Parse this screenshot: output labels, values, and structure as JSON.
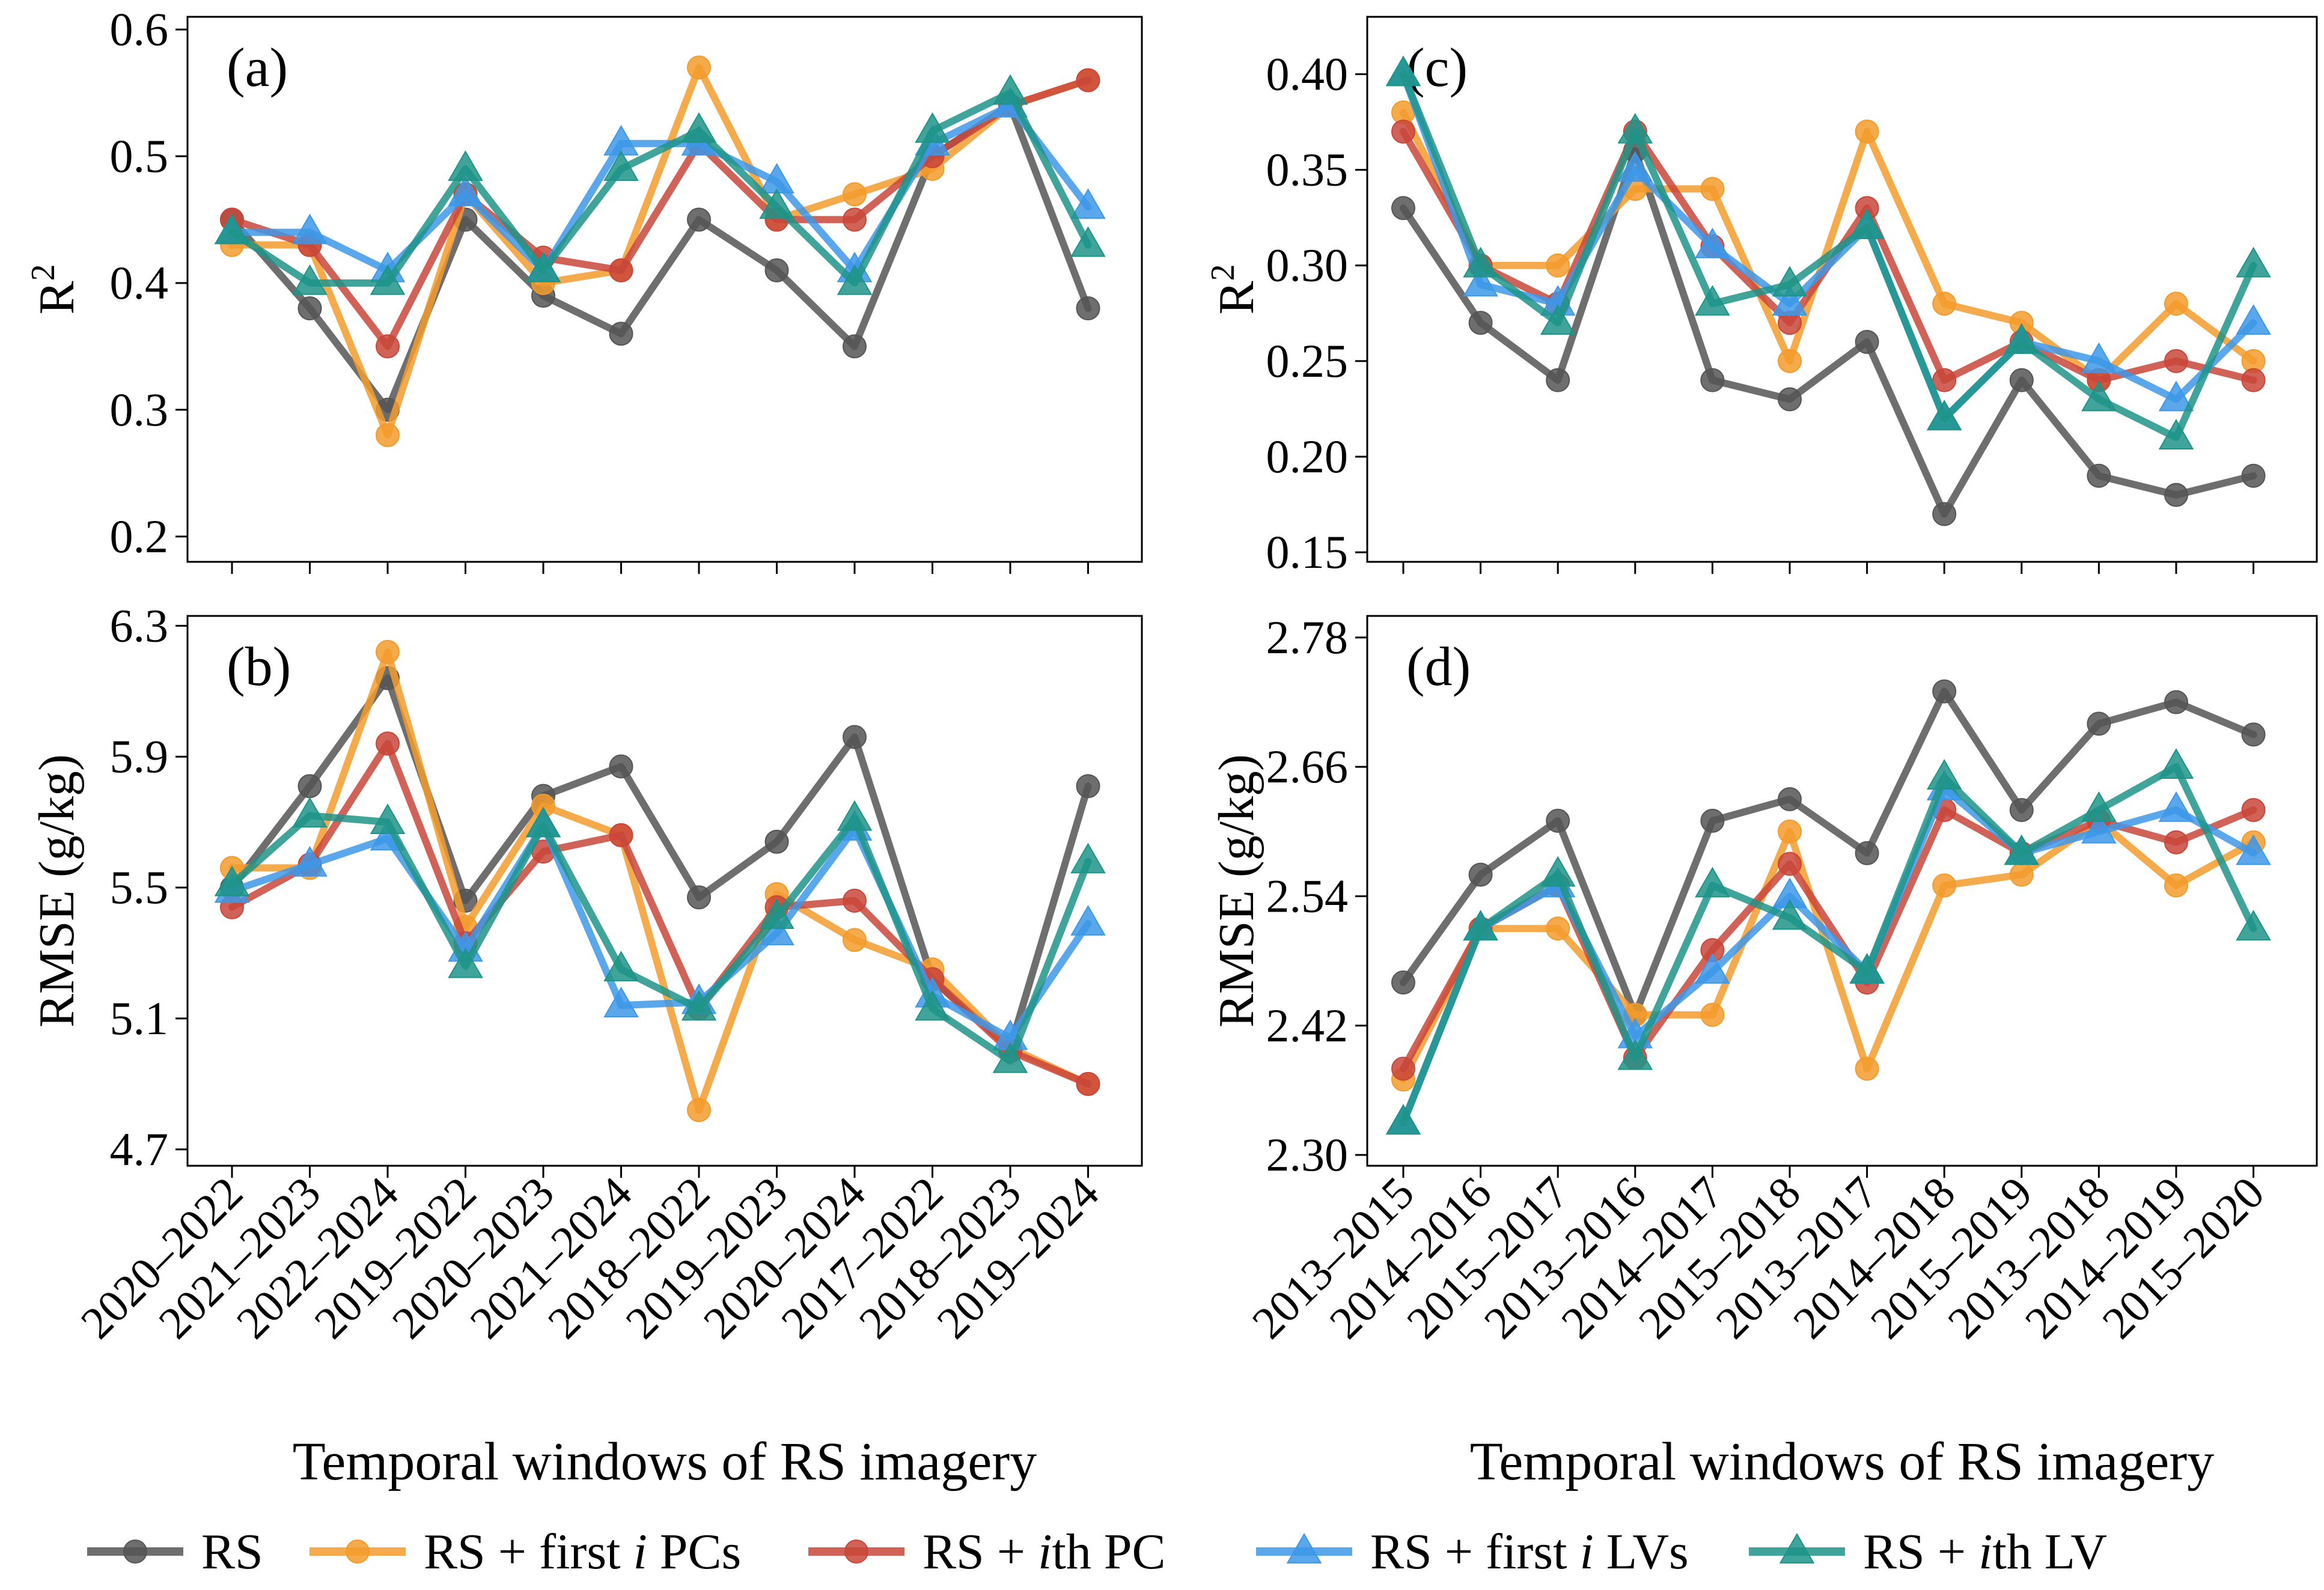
{
  "colors": {
    "RS": "#555555",
    "RS + first i PCs": "#F39B2D",
    "RS + ith PC": "#C9473A",
    "RS + first i LVs": "#3D98E8",
    "RS + ith LV": "#1E9488",
    "axis": "#000000"
  },
  "legend": {
    "items": [
      {
        "series": "RS",
        "marker": "circle",
        "pre": "RS",
        "ital": "",
        "post": ""
      },
      {
        "series": "RS + first i PCs",
        "marker": "circle",
        "pre": "RS + first ",
        "ital": "i",
        "post": " PCs"
      },
      {
        "series": "RS + ith PC",
        "marker": "circle",
        "pre": "RS + ",
        "ital": "i",
        "post": "th PC"
      },
      {
        "series": "RS + first i LVs",
        "marker": "triangle",
        "pre": "RS + first ",
        "ital": "i",
        "post": " LVs"
      },
      {
        "series": "RS + ith LV",
        "marker": "triangle",
        "pre": "RS + ",
        "ital": "i",
        "post": "th LV"
      }
    ]
  },
  "chart_data": [
    {
      "id": "a",
      "panel_label": "(a)",
      "type": "line",
      "ylabel": "R",
      "ylabel_sup": "2",
      "xlabel": "",
      "categories": [
        "2020–2022",
        "2021–2023",
        "2022–2024",
        "2019–2022",
        "2020–2023",
        "2021–2024",
        "2018–2022",
        "2019–2023",
        "2020–2024",
        "2017–2022",
        "2018–2023",
        "2019–2024"
      ],
      "ylim": [
        0.18,
        0.61
      ],
      "yticks": [
        0.2,
        0.3,
        0.4,
        0.5,
        0.6
      ],
      "ytick_labels": [
        "0.2",
        "0.3",
        "0.4",
        "0.5",
        "0.6"
      ],
      "show_xticklabels": false,
      "series": [
        {
          "name": "RS",
          "values": [
            0.45,
            0.38,
            0.3,
            0.45,
            0.39,
            0.36,
            0.45,
            0.41,
            0.35,
            0.5,
            0.54,
            0.38
          ]
        },
        {
          "name": "RS + first i PCs",
          "values": [
            0.43,
            0.43,
            0.28,
            0.47,
            0.4,
            0.41,
            0.57,
            0.45,
            0.47,
            0.49,
            0.54,
            0.56
          ]
        },
        {
          "name": "RS + ith PC",
          "values": [
            0.45,
            0.43,
            0.35,
            0.47,
            0.42,
            0.41,
            0.51,
            0.45,
            0.45,
            0.5,
            0.54,
            0.56
          ]
        },
        {
          "name": "RS + first i LVs",
          "values": [
            0.44,
            0.44,
            0.41,
            0.47,
            0.41,
            0.51,
            0.51,
            0.48,
            0.41,
            0.51,
            0.54,
            0.46
          ]
        },
        {
          "name": "RS + ith LV",
          "values": [
            0.44,
            0.4,
            0.4,
            0.49,
            0.41,
            0.49,
            0.52,
            0.46,
            0.4,
            0.52,
            0.55,
            0.43
          ]
        }
      ]
    },
    {
      "id": "c",
      "panel_label": "(c)",
      "type": "line",
      "ylabel": "R",
      "ylabel_sup": "2",
      "xlabel": "",
      "categories": [
        "2013–2015",
        "2014–2016",
        "2015–2017",
        "2013–2016",
        "2014–2017",
        "2015–2018",
        "2013–2017",
        "2014–2018",
        "2015–2019",
        "2013–2018",
        "2014–2019",
        "2015–2020"
      ],
      "ylim": [
        0.145,
        0.43
      ],
      "yticks": [
        0.15,
        0.2,
        0.25,
        0.3,
        0.35,
        0.4
      ],
      "ytick_labels": [
        "0.15",
        "0.20",
        "0.25",
        "0.30",
        "0.35",
        "0.40"
      ],
      "show_xticklabels": false,
      "series": [
        {
          "name": "RS",
          "values": [
            0.33,
            0.27,
            0.24,
            0.36,
            0.24,
            0.23,
            0.26,
            0.17,
            0.24,
            0.19,
            0.18,
            0.19
          ]
        },
        {
          "name": "RS + first i PCs",
          "values": [
            0.38,
            0.3,
            0.3,
            0.34,
            0.34,
            0.25,
            0.37,
            0.28,
            0.27,
            0.24,
            0.28,
            0.25
          ]
        },
        {
          "name": "RS + ith PC",
          "values": [
            0.37,
            0.3,
            0.28,
            0.37,
            0.31,
            0.27,
            0.33,
            0.24,
            0.26,
            0.24,
            0.25,
            0.24
          ]
        },
        {
          "name": "RS + first i LVs",
          "values": [
            0.4,
            0.29,
            0.28,
            0.35,
            0.31,
            0.28,
            0.32,
            0.22,
            0.26,
            0.25,
            0.23,
            0.27
          ]
        },
        {
          "name": "RS + ith LV",
          "values": [
            0.4,
            0.3,
            0.27,
            0.37,
            0.28,
            0.29,
            0.32,
            0.22,
            0.26,
            0.23,
            0.21,
            0.3
          ]
        }
      ]
    },
    {
      "id": "b",
      "panel_label": "(b)",
      "type": "line",
      "ylabel": "RMSE (g/kg)",
      "ylabel_sup": "",
      "xlabel": "Temporal windows of RS imagery",
      "categories": [
        "2020–2022",
        "2021–2023",
        "2022–2024",
        "2019–2022",
        "2020–2023",
        "2021–2024",
        "2018–2022",
        "2019–2023",
        "2020–2024",
        "2017–2022",
        "2018–2023",
        "2019–2024"
      ],
      "ylim": [
        4.65,
        6.33
      ],
      "yticks": [
        4.7,
        5.1,
        5.5,
        5.9,
        6.3
      ],
      "ytick_labels": [
        "4.7",
        "5.1",
        "5.5",
        "5.9",
        "6.3"
      ],
      "show_xticklabels": true,
      "series": [
        {
          "name": "RS",
          "values": [
            5.5,
            5.81,
            6.14,
            5.46,
            5.78,
            5.87,
            5.47,
            5.64,
            5.96,
            5.22,
            5.01,
            5.81
          ]
        },
        {
          "name": "RS + first i PCs",
          "values": [
            5.56,
            5.56,
            6.22,
            5.38,
            5.75,
            5.66,
            4.82,
            5.48,
            5.34,
            5.25,
            5.01,
            4.9
          ]
        },
        {
          "name": "RS + ith PC",
          "values": [
            5.44,
            5.57,
            5.94,
            5.33,
            5.61,
            5.66,
            5.13,
            5.44,
            5.46,
            5.22,
            5.0,
            4.9
          ]
        },
        {
          "name": "RS + first i LVs",
          "values": [
            5.49,
            5.57,
            5.65,
            5.31,
            5.69,
            5.14,
            5.15,
            5.36,
            5.68,
            5.17,
            5.04,
            5.39
          ]
        },
        {
          "name": "RS + ith LV",
          "values": [
            5.51,
            5.72,
            5.7,
            5.26,
            5.69,
            5.25,
            5.13,
            5.41,
            5.71,
            5.13,
            4.97,
            5.58
          ]
        }
      ]
    },
    {
      "id": "d",
      "panel_label": "(d)",
      "type": "line",
      "ylabel": "RMSE (g/kg)",
      "ylabel_sup": "",
      "xlabel": "Temporal windows of RS imagery",
      "categories": [
        "2013–2015",
        "2014–2016",
        "2015–2017",
        "2013–2016",
        "2014–2017",
        "2015–2018",
        "2013–2017",
        "2014–2018",
        "2015–2019",
        "2013–2018",
        "2014–2019",
        "2015–2020"
      ],
      "ylim": [
        2.29,
        2.8
      ],
      "yticks": [
        2.3,
        2.42,
        2.54,
        2.66,
        2.78
      ],
      "ytick_labels": [
        "2.30",
        "2.42",
        "2.54",
        "2.66",
        "2.78"
      ],
      "show_xticklabels": true,
      "series": [
        {
          "name": "RS",
          "values": [
            2.46,
            2.56,
            2.61,
            2.43,
            2.61,
            2.63,
            2.58,
            2.73,
            2.62,
            2.7,
            2.72,
            2.69
          ]
        },
        {
          "name": "RS + first i PCs",
          "values": [
            2.37,
            2.51,
            2.51,
            2.43,
            2.43,
            2.6,
            2.38,
            2.55,
            2.56,
            2.61,
            2.55,
            2.59
          ]
        },
        {
          "name": "RS + ith PC",
          "values": [
            2.38,
            2.51,
            2.55,
            2.39,
            2.49,
            2.57,
            2.46,
            2.62,
            2.58,
            2.61,
            2.59,
            2.62
          ]
        },
        {
          "name": "RS + first i LVs",
          "values": [
            2.33,
            2.51,
            2.55,
            2.41,
            2.47,
            2.54,
            2.47,
            2.64,
            2.58,
            2.6,
            2.62,
            2.58
          ]
        },
        {
          "name": "RS + ith LV",
          "values": [
            2.33,
            2.51,
            2.56,
            2.39,
            2.55,
            2.52,
            2.47,
            2.65,
            2.58,
            2.62,
            2.66,
            2.51
          ]
        }
      ]
    }
  ]
}
